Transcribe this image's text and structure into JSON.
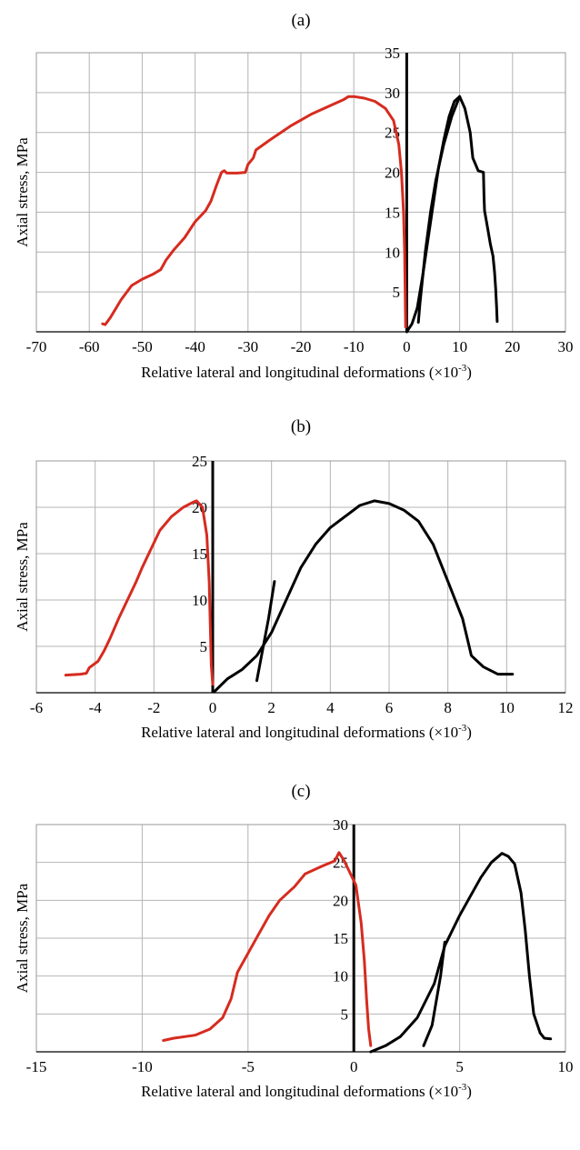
{
  "chart_data": [
    {
      "type": "line",
      "title": "(a)",
      "xlabel": "Relative lateral and longitudinal  deformations (×10",
      "xlabel_exp": "-3",
      "xlabel_close": ")",
      "ylabel": "Axial stress, MPa",
      "xlim": [
        -70,
        30
      ],
      "ylim": [
        0,
        35
      ],
      "x_ticks": [
        -70,
        -60,
        -50,
        -40,
        -30,
        -20,
        -10,
        0,
        10,
        20,
        30
      ],
      "y_ticks": [
        5,
        10,
        15,
        20,
        25,
        30,
        35
      ],
      "grid": true,
      "series": [
        {
          "color": "#d62b1f",
          "points": [
            [
              -57.5,
              1
            ],
            [
              -57,
              0.9
            ],
            [
              -56,
              1.8
            ],
            [
              -54,
              4
            ],
            [
              -52,
              5.8
            ],
            [
              -50,
              6.6
            ],
            [
              -48,
              7.2
            ],
            [
              -46.5,
              7.8
            ],
            [
              -45.5,
              9
            ],
            [
              -44,
              10.3
            ],
            [
              -42,
              11.8
            ],
            [
              -40,
              13.8
            ],
            [
              -38,
              15.2
            ],
            [
              -37,
              16.4
            ],
            [
              -36,
              18.3
            ],
            [
              -35,
              20
            ],
            [
              -34.5,
              20.2
            ],
            [
              -34,
              19.9
            ],
            [
              -32,
              19.9
            ],
            [
              -30.5,
              20
            ],
            [
              -30,
              21
            ],
            [
              -29,
              21.8
            ],
            [
              -28.5,
              22.8
            ],
            [
              -26,
              24
            ],
            [
              -22,
              25.8
            ],
            [
              -18,
              27.3
            ],
            [
              -14,
              28.5
            ],
            [
              -12,
              29.1
            ],
            [
              -11,
              29.5
            ],
            [
              -10,
              29.5
            ],
            [
              -8,
              29.3
            ],
            [
              -6,
              28.9
            ],
            [
              -4,
              28
            ],
            [
              -2.5,
              26.5
            ],
            [
              -1.5,
              23.5
            ],
            [
              -1,
              20
            ],
            [
              -0.6,
              15
            ],
            [
              -0.4,
              10
            ],
            [
              -0.3,
              5
            ],
            [
              -0.2,
              0.6
            ]
          ]
        },
        {
          "color": "#000000",
          "points": [
            [
              0,
              0
            ],
            [
              1,
              1
            ],
            [
              2,
              3
            ],
            [
              3,
              7
            ],
            [
              4,
              11.5
            ],
            [
              5,
              16
            ],
            [
              6,
              20.5
            ],
            [
              7,
              24
            ],
            [
              8,
              27
            ],
            [
              9,
              28.9
            ],
            [
              10,
              29.5
            ],
            [
              11,
              28
            ],
            [
              12,
              25
            ],
            [
              12.5,
              21.8
            ],
            [
              13,
              21
            ],
            [
              13.5,
              20.2
            ],
            [
              14.5,
              20
            ],
            [
              14.6,
              17
            ],
            [
              14.7,
              15.2
            ],
            [
              15.3,
              13
            ],
            [
              15.8,
              11
            ],
            [
              16.3,
              9.5
            ],
            [
              16.6,
              7.5
            ],
            [
              16.8,
              5.5
            ],
            [
              17,
              3
            ],
            [
              17.1,
              1.3
            ]
          ]
        },
        {
          "color": "#000000",
          "points": [
            [
              2.2,
              1.2
            ],
            [
              2.5,
              3.5
            ],
            [
              3.5,
              10
            ],
            [
              4.5,
              15
            ],
            [
              5.5,
              19
            ],
            [
              7,
              23.5
            ],
            [
              8.5,
              27
            ],
            [
              10,
              29.5
            ]
          ]
        }
      ]
    },
    {
      "type": "line",
      "title": "(b)",
      "xlabel": "Relative lateral and longitudinal  deformations (×10",
      "xlabel_exp": "-3",
      "xlabel_close": ")",
      "ylabel": "Axial stress, MPa",
      "xlim": [
        -6,
        12
      ],
      "ylim": [
        0,
        25
      ],
      "x_ticks": [
        -6,
        -4,
        -2,
        0,
        2,
        4,
        6,
        8,
        10,
        12
      ],
      "y_ticks": [
        5,
        10,
        15,
        20,
        25
      ],
      "grid": true,
      "series": [
        {
          "color": "#d62b1f",
          "points": [
            [
              -5,
              1.9
            ],
            [
              -4.5,
              2
            ],
            [
              -4.3,
              2.1
            ],
            [
              -4.2,
              2.7
            ],
            [
              -3.9,
              3.4
            ],
            [
              -3.7,
              4.5
            ],
            [
              -3.5,
              5.8
            ],
            [
              -3.2,
              8
            ],
            [
              -2.9,
              10
            ],
            [
              -2.6,
              12
            ],
            [
              -2.4,
              13.5
            ],
            [
              -2.1,
              15.5
            ],
            [
              -1.8,
              17.5
            ],
            [
              -1.4,
              19
            ],
            [
              -1,
              20
            ],
            [
              -0.7,
              20.5
            ],
            [
              -0.55,
              20.7
            ],
            [
              -0.35,
              20
            ],
            [
              -0.2,
              17
            ],
            [
              -0.12,
              12
            ],
            [
              -0.08,
              7
            ],
            [
              -0.05,
              3
            ],
            [
              0,
              0.9
            ]
          ]
        },
        {
          "color": "#000000",
          "points": [
            [
              0.05,
              0.1
            ],
            [
              0.5,
              1.5
            ],
            [
              1,
              2.5
            ],
            [
              1.5,
              4
            ],
            [
              2,
              6.5
            ],
            [
              2.5,
              10
            ],
            [
              3,
              13.5
            ],
            [
              3.5,
              16
            ],
            [
              4,
              17.8
            ],
            [
              4.5,
              19
            ],
            [
              5,
              20.2
            ],
            [
              5.5,
              20.7
            ],
            [
              6,
              20.4
            ],
            [
              6.5,
              19.7
            ],
            [
              7,
              18.5
            ],
            [
              7.5,
              16
            ],
            [
              8,
              12
            ],
            [
              8.5,
              8
            ],
            [
              8.8,
              4
            ],
            [
              9.2,
              2.8
            ],
            [
              9.7,
              2
            ],
            [
              10.2,
              2
            ]
          ]
        },
        {
          "color": "#000000",
          "points": [
            [
              1.5,
              1.3
            ],
            [
              1.9,
              8
            ],
            [
              2.1,
              12
            ]
          ]
        }
      ]
    },
    {
      "type": "line",
      "title": "(c)",
      "xlabel": "Relative lateral and longitudinal  deformations (×10",
      "xlabel_exp": "-3",
      "xlabel_close": ")",
      "ylabel": "Axial stress, MPa",
      "xlim": [
        -15,
        10
      ],
      "ylim": [
        0,
        30
      ],
      "x_ticks": [
        -15,
        -10,
        -5,
        0,
        5,
        10
      ],
      "y_ticks": [
        5,
        10,
        15,
        20,
        25,
        30
      ],
      "grid": true,
      "series": [
        {
          "color": "#d62b1f",
          "points": [
            [
              -9,
              1.5
            ],
            [
              -8.5,
              1.8
            ],
            [
              -7.5,
              2.2
            ],
            [
              -6.8,
              3
            ],
            [
              -6.2,
              4.5
            ],
            [
              -5.8,
              7
            ],
            [
              -5.5,
              10.5
            ],
            [
              -5,
              13
            ],
            [
              -4.5,
              15.5
            ],
            [
              -4,
              18
            ],
            [
              -3.5,
              20
            ],
            [
              -2.8,
              21.8
            ],
            [
              -2.3,
              23.5
            ],
            [
              -1.5,
              24.5
            ],
            [
              -0.9,
              25.2
            ],
            [
              -0.7,
              26.3
            ],
            [
              -0.45,
              25.2
            ],
            [
              0.1,
              22
            ],
            [
              0.35,
              17
            ],
            [
              0.5,
              12
            ],
            [
              0.6,
              7
            ],
            [
              0.7,
              3
            ],
            [
              0.8,
              0.8
            ]
          ]
        },
        {
          "color": "#000000",
          "points": [
            [
              0.8,
              0
            ],
            [
              1.5,
              0.8
            ],
            [
              2.2,
              2
            ],
            [
              3,
              4.5
            ],
            [
              3.8,
              9
            ],
            [
              4.3,
              14
            ],
            [
              5,
              18
            ],
            [
              5.5,
              20.5
            ],
            [
              6,
              23
            ],
            [
              6.5,
              25
            ],
            [
              7,
              26.2
            ],
            [
              7.3,
              25.8
            ],
            [
              7.6,
              24.8
            ],
            [
              7.9,
              21
            ],
            [
              8.1,
              16
            ],
            [
              8.3,
              10
            ],
            [
              8.5,
              5
            ],
            [
              8.8,
              2.5
            ],
            [
              9,
              1.8
            ],
            [
              9.3,
              1.7
            ]
          ]
        },
        {
          "color": "#000000",
          "points": [
            [
              3.3,
              0.8
            ],
            [
              3.7,
              3.5
            ],
            [
              4.1,
              10
            ],
            [
              4.3,
              14.5
            ]
          ]
        }
      ]
    }
  ]
}
